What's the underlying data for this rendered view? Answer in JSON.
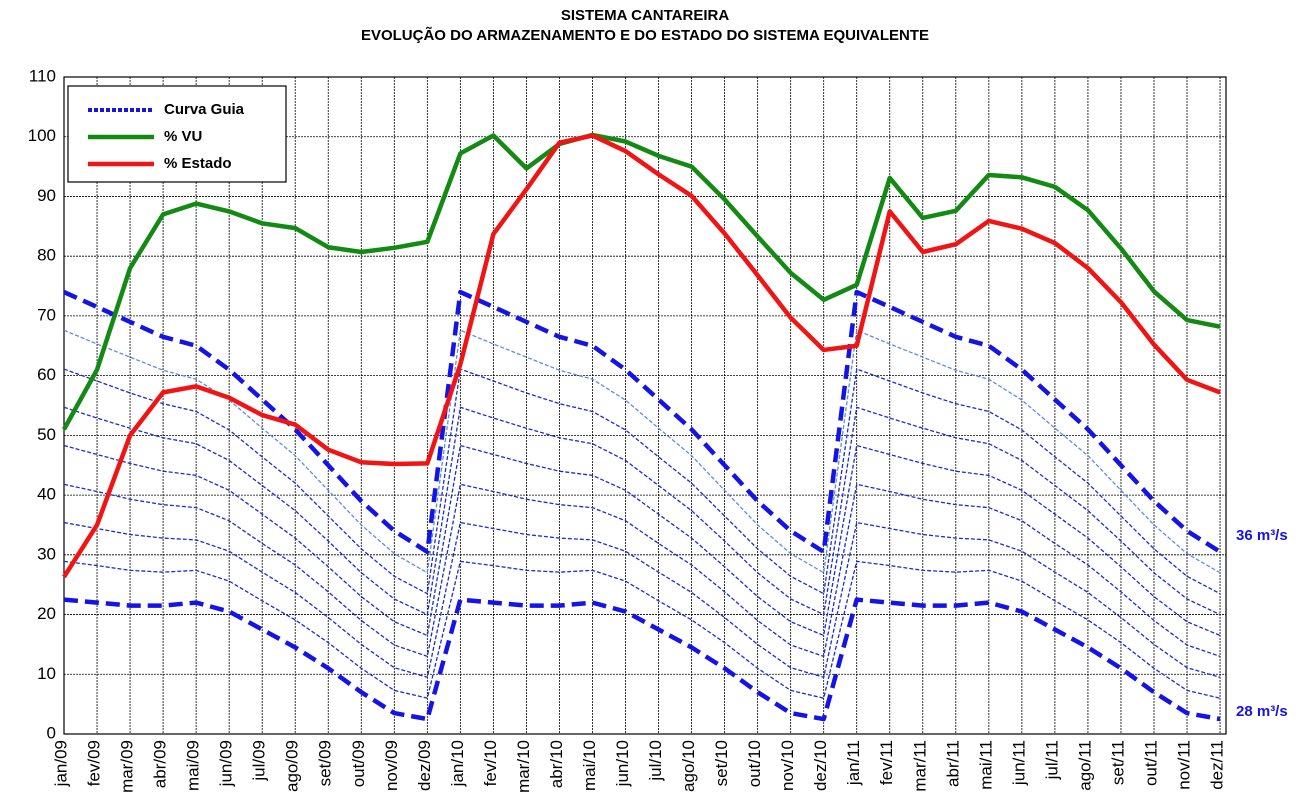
{
  "chart_data": {
    "type": "line",
    "title": "SISTEMA CANTAREIRA",
    "subtitle": "EVOLUÇÃO DO ARMAZENAMENTO  E DO ESTADO DO SISTEMA EQUIVALENTE",
    "categories": [
      "jan/09",
      "fev/09",
      "mar/09",
      "abr/09",
      "mai/09",
      "jun/09",
      "jul/09",
      "ago/09",
      "set/09",
      "out/09",
      "nov/09",
      "dez/09",
      "jan/10",
      "fev/10",
      "mar/10",
      "abr/10",
      "mai/10",
      "jun/10",
      "jul/10",
      "ago/10",
      "set/10",
      "out/10",
      "nov/10",
      "dez/10",
      "jan/11",
      "fev/11",
      "mar/11",
      "abr/11",
      "mai/11",
      "jun/11",
      "jul/11",
      "ago/11",
      "set/11",
      "out/11",
      "nov/11",
      "dez/11"
    ],
    "ylim": [
      0,
      110
    ],
    "yticks": [
      0,
      10,
      20,
      30,
      40,
      50,
      60,
      70,
      80,
      90,
      100,
      110
    ],
    "grid": true,
    "legend": "top-left",
    "annotations": [
      "36 m³/s",
      "28 m³/s"
    ],
    "series": [
      {
        "color": "#5b8fe0",
        "style": "thin",
        "values": [
          67.6,
          65.3,
          63.1,
          60.9,
          59.4,
          55.9,
          51.2,
          46.6,
          40.8,
          35,
          30.2,
          27,
          67.6,
          65.3,
          63.1,
          60.9,
          59.4,
          55.9,
          51.2,
          46.6,
          40.8,
          35,
          30.2,
          27,
          67.6,
          65.3,
          63.1,
          60.9,
          59.4,
          55.9,
          51.2,
          46.6,
          40.8,
          35,
          30.2,
          27
        ]
      },
      {
        "color": "#1a2ed0",
        "style": "thin",
        "values": [
          61.1,
          59.1,
          57.1,
          55.3,
          54,
          50.9,
          46.4,
          42,
          36.5,
          31,
          26.4,
          23.5,
          61.1,
          59.1,
          57.1,
          55.3,
          54,
          50.9,
          46.4,
          42,
          36.5,
          31,
          26.4,
          23.5,
          61.1,
          59.1,
          57.1,
          55.3,
          54,
          50.9,
          46.4,
          42,
          36.5,
          31,
          26.4,
          23.5
        ]
      },
      {
        "color": "#1a2ed0",
        "style": "thin",
        "values": [
          54.7,
          52.9,
          51.2,
          49.6,
          48.6,
          45.8,
          41.6,
          37.4,
          32.3,
          27,
          22.6,
          20,
          54.7,
          52.9,
          51.2,
          49.6,
          48.6,
          45.8,
          41.6,
          37.4,
          32.3,
          27,
          22.6,
          20,
          54.7,
          52.9,
          51.2,
          49.6,
          48.6,
          45.8,
          41.6,
          37.4,
          32.3,
          27,
          22.6,
          20
        ]
      },
      {
        "color": "#1a2ed0",
        "style": "thin",
        "values": [
          48.3,
          46.8,
          45.3,
          44,
          43.3,
          40.8,
          36.8,
          32.8,
          28,
          23,
          18.8,
          16.5,
          48.3,
          46.8,
          45.3,
          44,
          43.3,
          40.8,
          36.8,
          32.8,
          28,
          23,
          18.8,
          16.5,
          48.3,
          46.8,
          45.3,
          44,
          43.3,
          40.8,
          36.8,
          32.8,
          28,
          23,
          18.8,
          16.5
        ]
      },
      {
        "color": "#1a2ed0",
        "style": "thin",
        "values": [
          41.8,
          40.6,
          39.3,
          38.4,
          37.9,
          35.7,
          31.9,
          28.3,
          23.8,
          19,
          14.9,
          13,
          41.8,
          40.6,
          39.3,
          38.4,
          37.9,
          35.7,
          31.9,
          28.3,
          23.8,
          19,
          14.9,
          13,
          41.8,
          40.6,
          39.3,
          38.4,
          37.9,
          35.7,
          31.9,
          28.3,
          23.8,
          19,
          14.9,
          13
        ]
      },
      {
        "color": "#1a2ed0",
        "style": "thin",
        "values": [
          35.4,
          34.4,
          33.4,
          32.8,
          32.5,
          30.6,
          27.1,
          23.7,
          19.5,
          15,
          11.1,
          9.5,
          35.4,
          34.4,
          33.4,
          32.8,
          32.5,
          30.6,
          27.1,
          23.7,
          19.5,
          15,
          11.1,
          9.5,
          35.4,
          34.4,
          33.4,
          32.8,
          32.5,
          30.6,
          27.1,
          23.7,
          19.5,
          15,
          11.1,
          9.5
        ]
      },
      {
        "color": "#1a2ed0",
        "style": "thin",
        "values": [
          28.9,
          28.2,
          27.4,
          27.1,
          27.4,
          25.6,
          22.3,
          19.1,
          15.3,
          11,
          7.3,
          6,
          28.9,
          28.2,
          27.4,
          27.1,
          27.4,
          25.6,
          22.3,
          19.1,
          15.3,
          11,
          7.3,
          6,
          28.9,
          28.2,
          27.4,
          27.1,
          27.4,
          25.6,
          22.3,
          19.1,
          15.3,
          11,
          7.3,
          6
        ]
      },
      {
        "color": "#1414e6",
        "style": "thick",
        "values": [
          22.5,
          22,
          21.5,
          21.5,
          22,
          20.5,
          17.5,
          14.5,
          11,
          7,
          3.5,
          2.5,
          22.5,
          22,
          21.5,
          21.5,
          22,
          20.5,
          17.5,
          14.5,
          11,
          7,
          3.5,
          2.5,
          22.5,
          22,
          21.5,
          21.5,
          22,
          20.5,
          17.5,
          14.5,
          11,
          7,
          3.5,
          2.5
        ]
      },
      {
        "name": "Curva Guia",
        "color": "#1414e6",
        "style": "thick",
        "values": [
          74,
          71.5,
          69,
          66.5,
          65,
          61,
          56,
          51,
          45,
          39,
          34,
          30.5,
          74,
          71.5,
          69,
          66.5,
          65,
          61,
          56,
          51,
          45,
          39,
          34,
          30.5,
          74,
          71.5,
          69,
          66.5,
          65,
          61,
          56,
          51,
          45,
          39,
          34,
          30.5
        ]
      },
      {
        "name": "% VU",
        "color": "#138a13",
        "style": "solid",
        "values": [
          51,
          61,
          78,
          87,
          88.8,
          87.5,
          85.5,
          84.7,
          81.5,
          80.7,
          81.4,
          82.4,
          97.2,
          100.2,
          94.7,
          98.8,
          100.3,
          99.2,
          96.8,
          95,
          89.5,
          83.3,
          77.2,
          72.7,
          75.2,
          93.1,
          86.4,
          87.6,
          93.6,
          93.2,
          91.6,
          87.7,
          81.3,
          74.1,
          69.3,
          68.2
        ]
      },
      {
        "name": "% Estado",
        "color": "#f01414",
        "style": "solid",
        "values": [
          26.3,
          35,
          50,
          57.2,
          58.2,
          56.3,
          53.4,
          51.8,
          47.6,
          45.5,
          45.2,
          45.3,
          61.9,
          83.7,
          91.2,
          99,
          100.2,
          97.6,
          93.7,
          90.1,
          83.8,
          76.8,
          69.7,
          64.3,
          65,
          87.5,
          80.7,
          82,
          85.9,
          84.6,
          82.2,
          78,
          72.3,
          65.2,
          59.3,
          57.2
        ]
      }
    ]
  }
}
